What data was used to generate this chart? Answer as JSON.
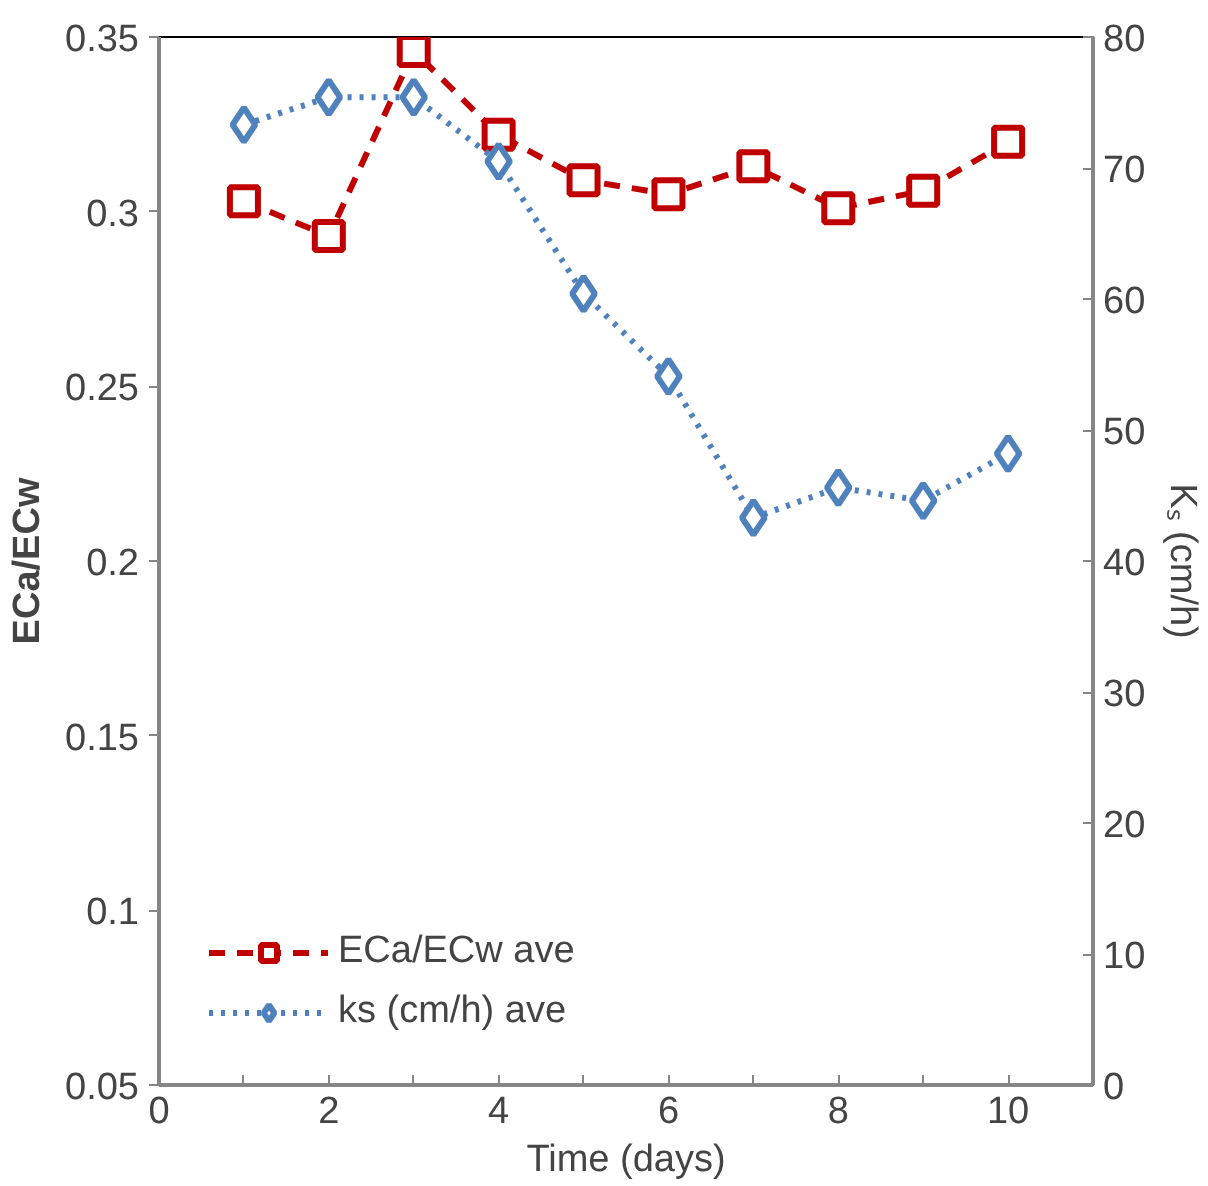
{
  "chart_data": {
    "type": "line",
    "xlabel": "Time (days)",
    "ylabel": "ECa/ECw",
    "y2label": "Kₛ (cm/h)",
    "x": [
      1,
      2,
      3,
      4,
      5,
      6,
      7,
      8,
      9,
      10
    ],
    "series": [
      {
        "name": "ECa/ECw ave",
        "color": "#c00000",
        "marker": "square",
        "line_style": "dashed",
        "values": [
          0.303,
          0.293,
          0.346,
          0.322,
          0.309,
          0.305,
          0.313,
          0.301,
          0.306,
          0.32
        ]
      },
      {
        "name": "ks (cm/h) ave",
        "color": "#4f81bd",
        "marker": "diamond",
        "line_style": "dotted",
        "axis": "y2",
        "values": [
          73.3,
          75.4,
          75.4,
          70.5,
          60.4,
          54.1,
          43.3,
          45.6,
          44.6,
          48.2
        ]
      }
    ],
    "xlim": [
      0,
      11
    ],
    "xticks": [
      0,
      {
        "value": 1,
        "label": null
      },
      2,
      {
        "value": 3,
        "label": null
      },
      4,
      {
        "value": 5,
        "label": null
      },
      6,
      {
        "value": 7,
        "label": null
      },
      8,
      {
        "value": 9,
        "label": null
      },
      10,
      {
        "value": 11,
        "label": null
      }
    ],
    "ylim": [
      0.05,
      0.35
    ],
    "yticks": [
      {
        "value": 0.05,
        "label": "0.05"
      },
      {
        "value": 0.1,
        "label": "0.1"
      },
      {
        "value": 0.15,
        "label": "0.15"
      },
      {
        "value": 0.2,
        "label": "0.2"
      },
      {
        "value": 0.25,
        "label": "0.25"
      },
      {
        "value": 0.3,
        "label": "0.3"
      },
      {
        "value": 0.35,
        "label": "0.35"
      }
    ],
    "y2lim": [
      0,
      80
    ],
    "y2ticks": [
      0,
      10,
      20,
      30,
      40,
      50,
      60,
      70,
      80
    ],
    "grid": false,
    "legend": "bottom left"
  }
}
